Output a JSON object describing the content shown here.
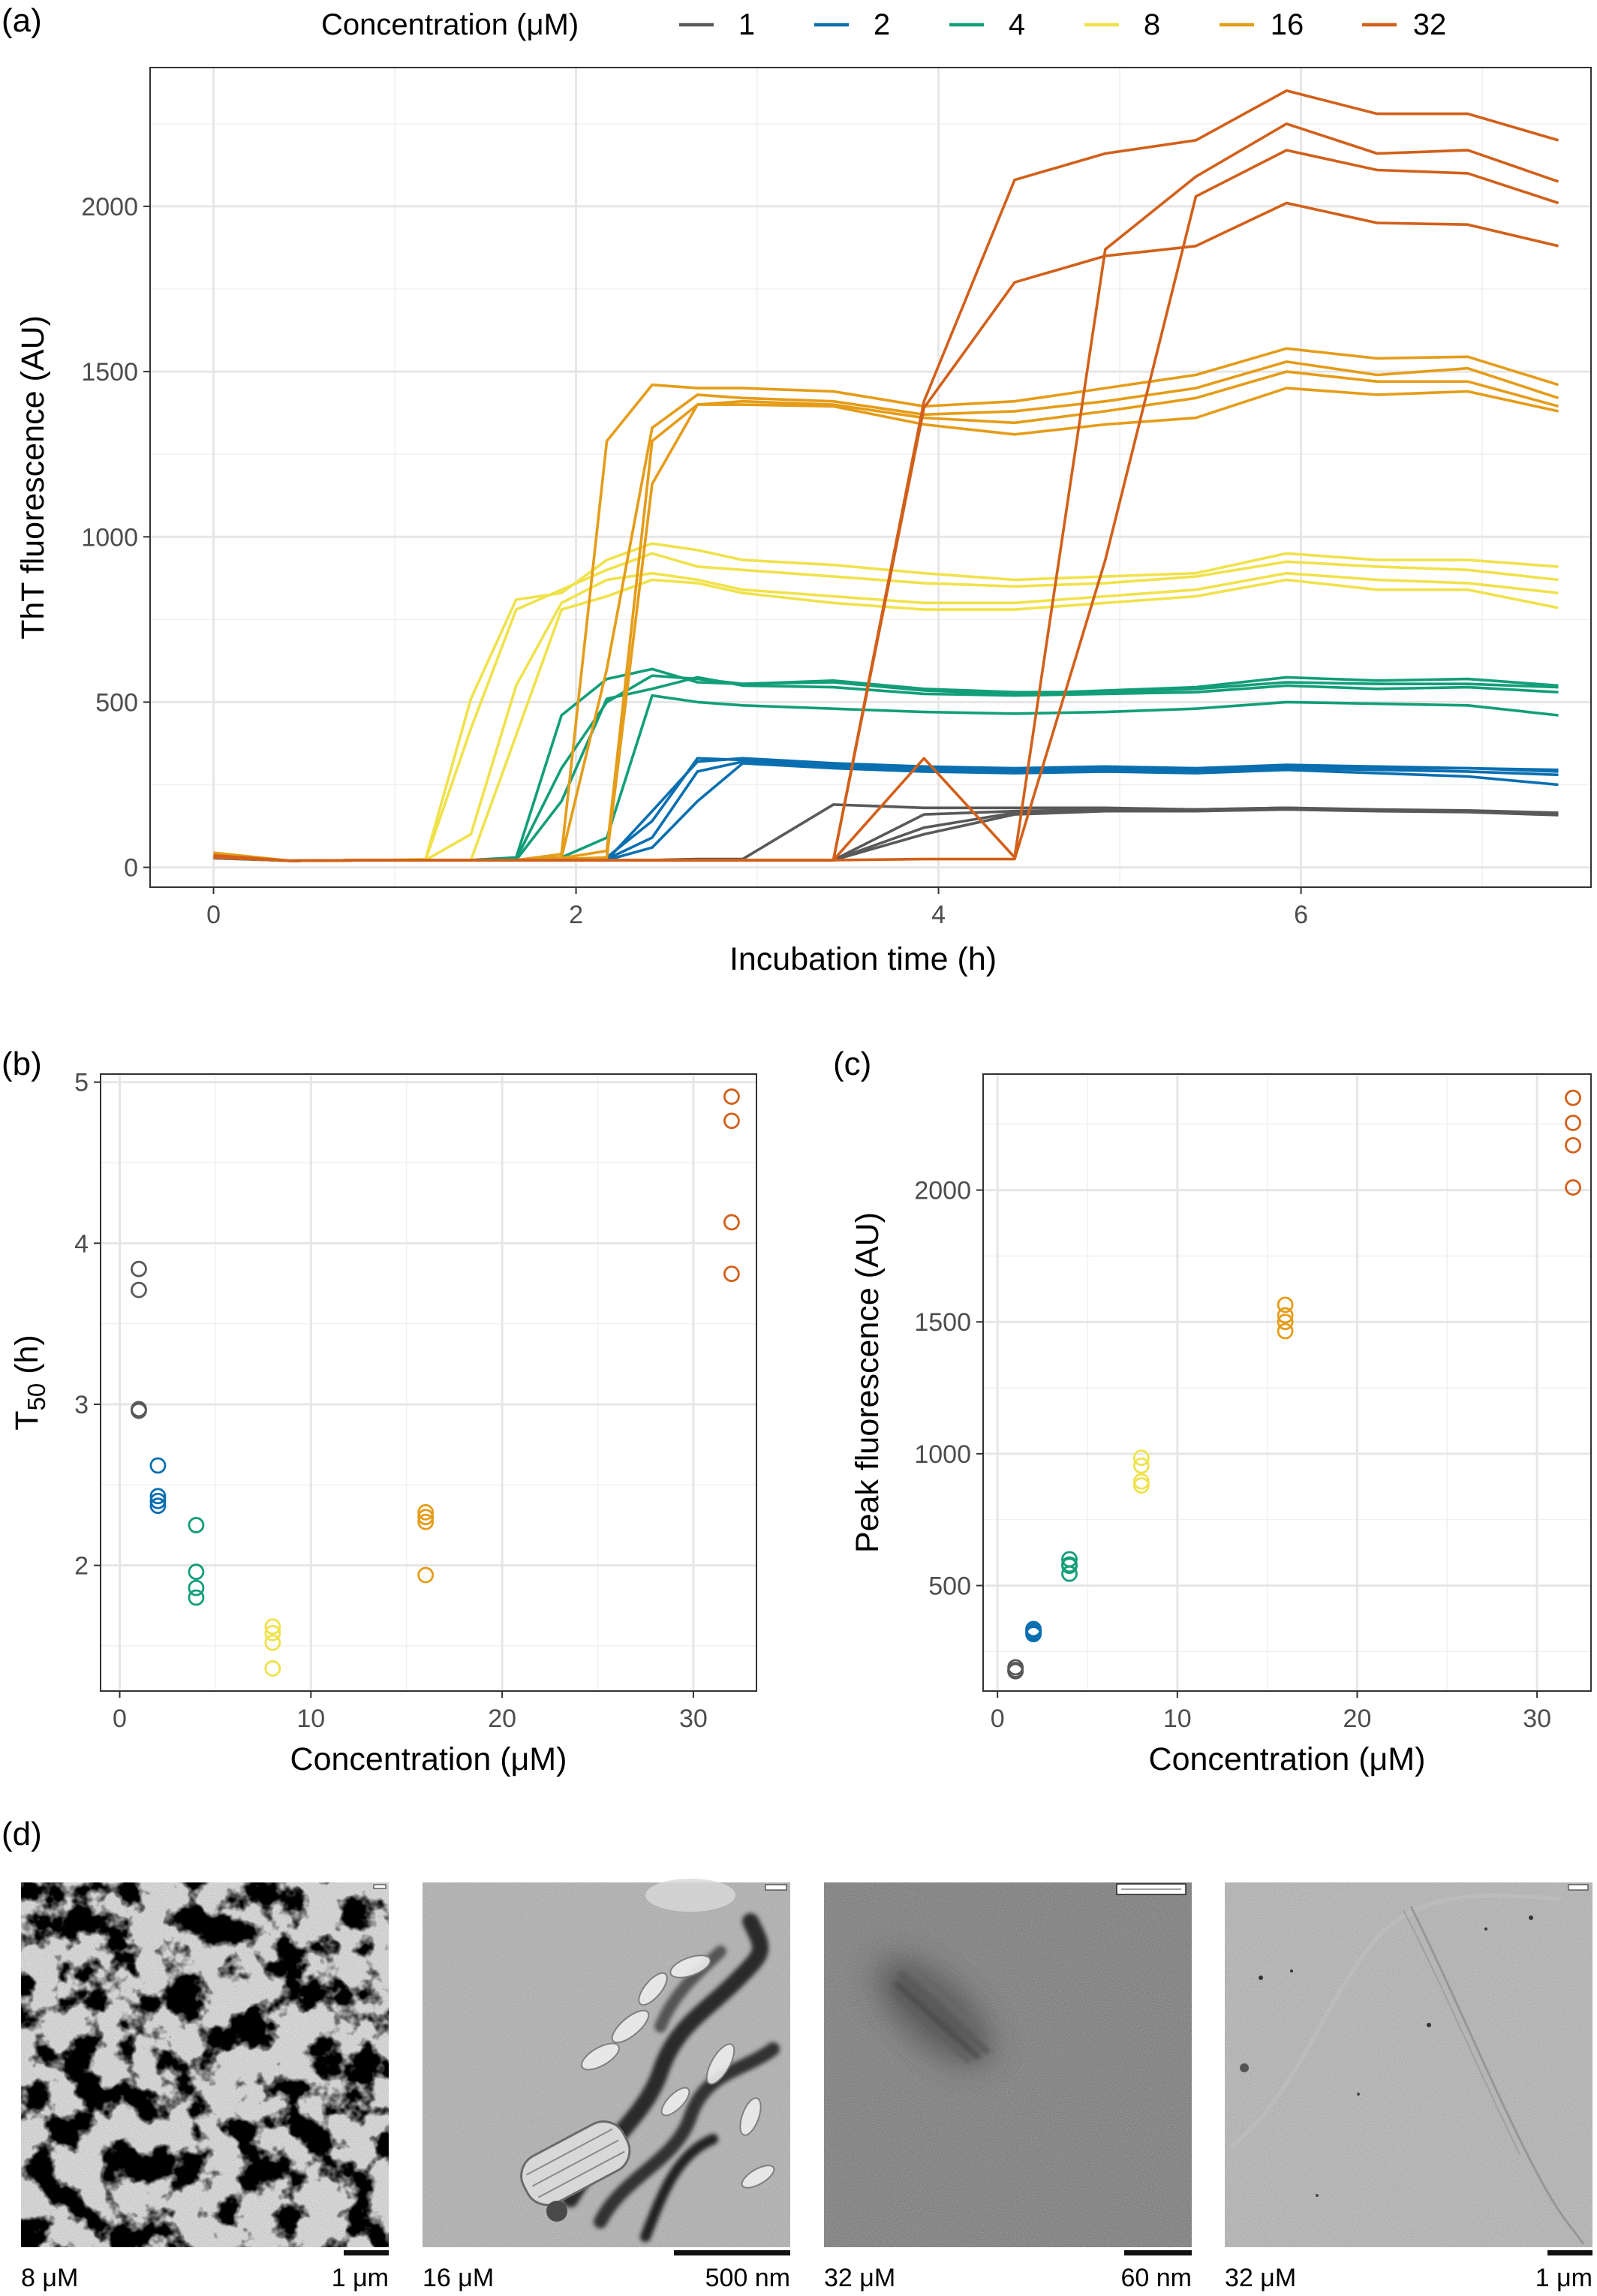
{
  "colors": {
    "1": "#595959",
    "2": "#0a6fb1",
    "4": "#129e79",
    "8": "#f0e24b",
    "16": "#e59c18",
    "32": "#d2601a"
  },
  "panel_labels": {
    "a": "(a)",
    "b": "(b)",
    "c": "(c)",
    "d": "(d)"
  },
  "chart_data": [
    {
      "type": "line",
      "panel": "(a)",
      "xlabel": "Incubation time (h)",
      "ylabel": "ThT fluorescence (AU)",
      "xlim": [
        -0.35,
        7.6
      ],
      "ylim": [
        -60,
        2420
      ],
      "xticks": [
        0,
        2,
        4,
        6
      ],
      "yticks": [
        0,
        500,
        1000,
        1500,
        2000
      ],
      "grid": true,
      "legend_title": "Concentration (μM)",
      "legend_position": "top",
      "legend_items": [
        "1",
        "2",
        "4",
        "8",
        "16",
        "32"
      ],
      "x": [
        0,
        0.42,
        0.92,
        1.17,
        1.42,
        1.67,
        1.92,
        2.17,
        2.42,
        2.67,
        2.92,
        3.42,
        3.92,
        4.42,
        4.92,
        5.42,
        5.92,
        6.42,
        6.92,
        7.42
      ],
      "series": [
        {
          "group": "1",
          "values": [
            28,
            20,
            22,
            22,
            22,
            22,
            22,
            22,
            22,
            25,
            25,
            190,
            180,
            180,
            180,
            175,
            180,
            175,
            172,
            165
          ]
        },
        {
          "group": "1",
          "values": [
            32,
            20,
            22,
            22,
            22,
            22,
            22,
            22,
            22,
            22,
            22,
            22,
            160,
            170,
            175,
            175,
            180,
            172,
            170,
            162
          ]
        },
        {
          "group": "1",
          "values": [
            30,
            20,
            22,
            22,
            22,
            22,
            22,
            22,
            22,
            22,
            22,
            22,
            120,
            165,
            172,
            172,
            178,
            172,
            168,
            160
          ]
        },
        {
          "group": "1",
          "values": [
            35,
            20,
            22,
            22,
            22,
            22,
            22,
            22,
            22,
            22,
            22,
            22,
            100,
            160,
            170,
            170,
            175,
            170,
            167,
            158
          ]
        },
        {
          "group": "2",
          "values": [
            30,
            20,
            22,
            22,
            22,
            22,
            22,
            22,
            170,
            320,
            330,
            315,
            305,
            300,
            305,
            300,
            310,
            305,
            300,
            295
          ]
        },
        {
          "group": "2",
          "values": [
            32,
            20,
            22,
            22,
            22,
            22,
            22,
            30,
            140,
            330,
            325,
            305,
            300,
            295,
            300,
            295,
            305,
            300,
            300,
            290
          ]
        },
        {
          "group": "2",
          "values": [
            30,
            20,
            22,
            22,
            22,
            22,
            22,
            25,
            90,
            290,
            320,
            310,
            295,
            290,
            295,
            290,
            300,
            295,
            290,
            280
          ]
        },
        {
          "group": "2",
          "values": [
            34,
            20,
            22,
            22,
            22,
            22,
            22,
            22,
            60,
            200,
            315,
            300,
            290,
            285,
            290,
            285,
            295,
            285,
            275,
            250
          ]
        },
        {
          "group": "4",
          "values": [
            30,
            20,
            22,
            22,
            22,
            30,
            460,
            570,
            600,
            560,
            555,
            560,
            535,
            525,
            535,
            545,
            575,
            565,
            570,
            550
          ]
        },
        {
          "group": "4",
          "values": [
            32,
            20,
            22,
            22,
            22,
            25,
            300,
            500,
            580,
            570,
            555,
            565,
            540,
            530,
            530,
            540,
            560,
            555,
            555,
            545
          ]
        },
        {
          "group": "4",
          "values": [
            30,
            20,
            22,
            22,
            22,
            22,
            200,
            510,
            540,
            575,
            550,
            545,
            525,
            520,
            525,
            530,
            550,
            540,
            545,
            530
          ]
        },
        {
          "group": "4",
          "values": [
            34,
            20,
            22,
            22,
            22,
            22,
            30,
            90,
            520,
            500,
            490,
            480,
            470,
            465,
            470,
            480,
            500,
            495,
            490,
            460
          ]
        },
        {
          "group": "8",
          "values": [
            32,
            20,
            22,
            25,
            510,
            810,
            830,
            930,
            980,
            960,
            930,
            915,
            890,
            870,
            880,
            890,
            950,
            930,
            930,
            910
          ]
        },
        {
          "group": "8",
          "values": [
            34,
            20,
            22,
            22,
            420,
            780,
            840,
            900,
            950,
            910,
            900,
            880,
            860,
            850,
            860,
            880,
            925,
            910,
            900,
            870
          ]
        },
        {
          "group": "8",
          "values": [
            30,
            20,
            22,
            22,
            100,
            550,
            800,
            870,
            890,
            870,
            840,
            820,
            800,
            800,
            820,
            840,
            890,
            870,
            860,
            830
          ]
        },
        {
          "group": "8",
          "values": [
            36,
            20,
            22,
            22,
            22,
            400,
            780,
            820,
            870,
            860,
            830,
            800,
            780,
            780,
            800,
            820,
            870,
            840,
            840,
            785
          ]
        },
        {
          "group": "16",
          "values": [
            40,
            20,
            22,
            22,
            22,
            22,
            40,
            1290,
            1460,
            1450,
            1450,
            1440,
            1395,
            1410,
            1450,
            1490,
            1570,
            1540,
            1545,
            1460
          ]
        },
        {
          "group": "16",
          "values": [
            42,
            20,
            22,
            22,
            22,
            22,
            30,
            600,
            1330,
            1430,
            1420,
            1410,
            1370,
            1380,
            1410,
            1450,
            1530,
            1490,
            1510,
            1420
          ]
        },
        {
          "group": "16",
          "values": [
            40,
            20,
            22,
            22,
            22,
            22,
            28,
            50,
            1290,
            1400,
            1410,
            1400,
            1360,
            1345,
            1380,
            1420,
            1500,
            1470,
            1470,
            1395
          ]
        },
        {
          "group": "16",
          "values": [
            44,
            20,
            22,
            22,
            22,
            22,
            25,
            30,
            1160,
            1400,
            1400,
            1395,
            1340,
            1310,
            1340,
            1360,
            1450,
            1430,
            1440,
            1380
          ]
        },
        {
          "group": "32",
          "values": [
            36,
            20,
            22,
            22,
            22,
            22,
            22,
            22,
            22,
            22,
            22,
            22,
            1410,
            2080,
            2160,
            2200,
            2350,
            2280,
            2280,
            2200
          ]
        },
        {
          "group": "32",
          "values": [
            34,
            20,
            22,
            22,
            22,
            22,
            22,
            22,
            22,
            22,
            22,
            22,
            1390,
            1770,
            1850,
            1880,
            2010,
            1950,
            1945,
            1880
          ]
        },
        {
          "group": "32",
          "values": [
            32,
            20,
            22,
            22,
            22,
            22,
            22,
            22,
            22,
            22,
            22,
            22,
            330,
            30,
            1870,
            2090,
            2250,
            2160,
            2170,
            2075
          ]
        },
        {
          "group": "32",
          "values": [
            30,
            20,
            22,
            22,
            22,
            22,
            22,
            22,
            22,
            22,
            22,
            22,
            25,
            25,
            930,
            2030,
            2170,
            2110,
            2100,
            2010
          ]
        }
      ]
    },
    {
      "type": "scatter",
      "panel": "(b)",
      "xlabel": "Concentration (μM)",
      "ylabel_main": "T",
      "ylabel_sub": "50",
      "ylabel_unit": " (h)",
      "xlim": [
        -1.0,
        33.3
      ],
      "ylim": [
        1.22,
        5.05
      ],
      "xticks": [
        0,
        10,
        20,
        30
      ],
      "yticks": [
        2,
        3,
        4,
        5
      ],
      "grid": true,
      "points": [
        {
          "group": "1",
          "x": 1,
          "y": 3.84
        },
        {
          "group": "1",
          "x": 1,
          "y": 3.71
        },
        {
          "group": "1",
          "x": 1,
          "y": 2.97
        },
        {
          "group": "1",
          "x": 1,
          "y": 2.96
        },
        {
          "group": "2",
          "x": 2,
          "y": 2.62
        },
        {
          "group": "2",
          "x": 2,
          "y": 2.43
        },
        {
          "group": "2",
          "x": 2,
          "y": 2.4
        },
        {
          "group": "2",
          "x": 2,
          "y": 2.37
        },
        {
          "group": "4",
          "x": 4,
          "y": 2.25
        },
        {
          "group": "4",
          "x": 4,
          "y": 1.96
        },
        {
          "group": "4",
          "x": 4,
          "y": 1.86
        },
        {
          "group": "4",
          "x": 4,
          "y": 1.8
        },
        {
          "group": "8",
          "x": 8,
          "y": 1.62
        },
        {
          "group": "8",
          "x": 8,
          "y": 1.58
        },
        {
          "group": "8",
          "x": 8,
          "y": 1.52
        },
        {
          "group": "8",
          "x": 8,
          "y": 1.36
        },
        {
          "group": "16",
          "x": 16,
          "y": 2.33
        },
        {
          "group": "16",
          "x": 16,
          "y": 2.3
        },
        {
          "group": "16",
          "x": 16,
          "y": 2.27
        },
        {
          "group": "16",
          "x": 16,
          "y": 1.94
        },
        {
          "group": "32",
          "x": 32,
          "y": 4.91
        },
        {
          "group": "32",
          "x": 32,
          "y": 4.76
        },
        {
          "group": "32",
          "x": 32,
          "y": 4.13
        },
        {
          "group": "32",
          "x": 32,
          "y": 3.81
        }
      ]
    },
    {
      "type": "scatter",
      "panel": "(c)",
      "xlabel": "Concentration (μM)",
      "ylabel": "Peak fluorescence (AU)",
      "xlim": [
        -0.8,
        33.0
      ],
      "ylim": [
        100,
        2440
      ],
      "xticks": [
        0,
        10,
        20,
        30
      ],
      "yticks": [
        500,
        1000,
        1500,
        2000
      ],
      "grid": true,
      "points": [
        {
          "group": "1",
          "x": 1,
          "y": 190
        },
        {
          "group": "1",
          "x": 1,
          "y": 180
        },
        {
          "group": "1",
          "x": 1,
          "y": 178
        },
        {
          "group": "1",
          "x": 1,
          "y": 175
        },
        {
          "group": "2",
          "x": 2,
          "y": 335
        },
        {
          "group": "2",
          "x": 2,
          "y": 328
        },
        {
          "group": "2",
          "x": 2,
          "y": 322
        },
        {
          "group": "2",
          "x": 2,
          "y": 316
        },
        {
          "group": "4",
          "x": 4,
          "y": 600
        },
        {
          "group": "4",
          "x": 4,
          "y": 580
        },
        {
          "group": "4",
          "x": 4,
          "y": 575
        },
        {
          "group": "4",
          "x": 4,
          "y": 545
        },
        {
          "group": "8",
          "x": 8,
          "y": 985
        },
        {
          "group": "8",
          "x": 8,
          "y": 955
        },
        {
          "group": "8",
          "x": 8,
          "y": 895
        },
        {
          "group": "8",
          "x": 8,
          "y": 880
        },
        {
          "group": "16",
          "x": 16,
          "y": 1565
        },
        {
          "group": "16",
          "x": 16,
          "y": 1525
        },
        {
          "group": "16",
          "x": 16,
          "y": 1500
        },
        {
          "group": "16",
          "x": 16,
          "y": 1465
        },
        {
          "group": "32",
          "x": 32,
          "y": 2350
        },
        {
          "group": "32",
          "x": 32,
          "y": 2255
        },
        {
          "group": "32",
          "x": 32,
          "y": 2170
        },
        {
          "group": "32",
          "x": 32,
          "y": 2010
        }
      ]
    }
  ],
  "micrographs": [
    {
      "concentration": "8 μM",
      "scale": "1 μm",
      "style": "dark-aggregates"
    },
    {
      "concentration": "16 μM",
      "scale": "500 nm",
      "style": "ribbons"
    },
    {
      "concentration": "32 μM",
      "scale": "60 nm",
      "style": "single-fibril"
    },
    {
      "concentration": "32 μM",
      "scale": "1 μm",
      "style": "sparse"
    }
  ]
}
